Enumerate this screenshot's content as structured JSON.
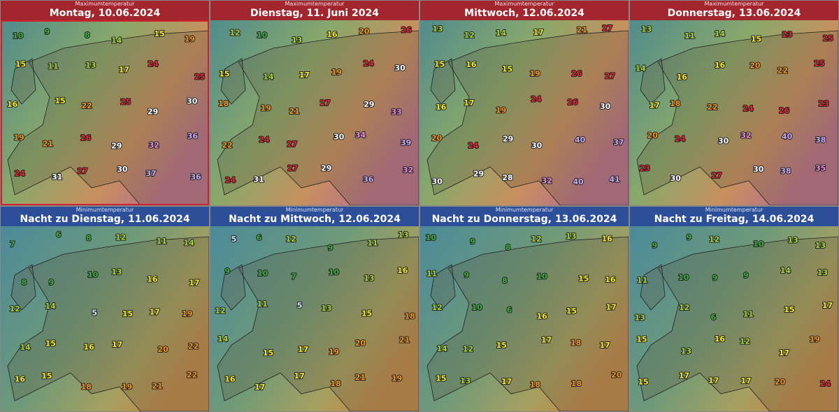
{
  "panels": [
    {
      "kind": "Maximumtemperatur",
      "title": "Montag, 10.06.2024",
      "temps": [
        10,
        9,
        8,
        14,
        15,
        19,
        15,
        11,
        13,
        17,
        24,
        25,
        16,
        15,
        22,
        25,
        29,
        30,
        19,
        21,
        26,
        29,
        32,
        36,
        24,
        31,
        27,
        30,
        37,
        36
      ]
    },
    {
      "kind": "Maximumtemperatur",
      "title": "Dienstag, 11. Juni 2024",
      "temps": [
        12,
        10,
        13,
        16,
        20,
        26,
        15,
        14,
        17,
        19,
        24,
        30,
        18,
        19,
        21,
        27,
        29,
        33,
        22,
        24,
        27,
        30,
        34,
        39,
        24,
        31,
        27,
        29,
        36,
        32
      ]
    },
    {
      "kind": "Maximumtemperatur",
      "title": "Mittwoch, 12.06.2024",
      "temps": [
        13,
        12,
        14,
        17,
        21,
        27,
        15,
        16,
        15,
        19,
        26,
        27,
        16,
        17,
        19,
        24,
        26,
        30,
        20,
        24,
        29,
        30,
        40,
        37,
        30,
        29,
        28,
        32,
        40,
        41
      ]
    },
    {
      "kind": "Maximumtemperatur",
      "title": "Donnerstag, 13.06.2024",
      "temps": [
        13,
        11,
        14,
        15,
        23,
        25,
        14,
        16,
        16,
        20,
        22,
        25,
        17,
        18,
        22,
        24,
        26,
        23,
        20,
        24,
        30,
        32,
        40,
        38,
        23,
        30,
        27,
        30,
        38,
        35
      ]
    },
    {
      "kind": "Minimumtemperatur",
      "title": "Nacht zu Dienstag, 11.06.2024",
      "temps": [
        7,
        6,
        8,
        12,
        11,
        14,
        8,
        9,
        10,
        13,
        16,
        17,
        12,
        14,
        5,
        15,
        17,
        19,
        14,
        15,
        16,
        17,
        20,
        22,
        16,
        15,
        18,
        19,
        21,
        22
      ]
    },
    {
      "kind": "Minimumtemperatur",
      "title": "Nacht zu Mittwoch, 12.06.2024",
      "temps": [
        5,
        6,
        12,
        9,
        11,
        13,
        9,
        10,
        7,
        10,
        13,
        16,
        12,
        11,
        5,
        13,
        15,
        18,
        14,
        15,
        17,
        19,
        20,
        21,
        16,
        17,
        17,
        18,
        21,
        19
      ]
    },
    {
      "kind": "Minimumtemperatur",
      "title": "Nacht zu Donnerstag, 13.06.2024",
      "temps": [
        10,
        9,
        8,
        12,
        13,
        16,
        11,
        9,
        8,
        10,
        15,
        16,
        12,
        10,
        6,
        16,
        15,
        17,
        14,
        12,
        15,
        17,
        18,
        17,
        15,
        13,
        17,
        18,
        18,
        20
      ]
    },
    {
      "kind": "Minimumtemperatur",
      "title": "Nacht zu Freitag, 14.06.2024",
      "temps": [
        9,
        9,
        12,
        10,
        13,
        13,
        11,
        10,
        9,
        9,
        14,
        13,
        13,
        12,
        6,
        11,
        15,
        17,
        15,
        13,
        16,
        12,
        17,
        19,
        15,
        17,
        17,
        17,
        20,
        24
      ]
    }
  ]
}
